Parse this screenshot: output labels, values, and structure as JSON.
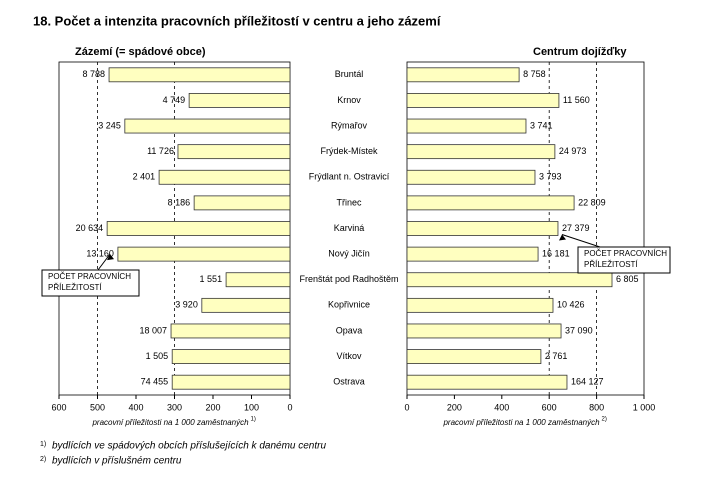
{
  "title": "18. Počet a intenzita pracovních příležitostí v centru a jeho zázemí",
  "chart_data": [
    {
      "type": "bar",
      "orientation": "horizontal",
      "reversed": true,
      "subtitle": "Zázemí (= spádové obce)",
      "categories": [
        "Bruntál",
        "Krnov",
        "Rýmařov",
        "Frýdek-Místek",
        "Frýdlant n. Ostravicí",
        "Třinec",
        "Karviná",
        "Nový Jičín",
        "Frenštát pod Radhoštěm",
        "Kopřivnice",
        "Opava",
        "Vítkov",
        "Ostrava"
      ],
      "values": [
        470,
        262,
        429,
        291,
        340,
        249,
        475,
        447,
        166,
        229,
        309,
        306,
        306
      ],
      "job_counts": [
        "8 788",
        "4 749",
        "3 245",
        "11 726",
        "2 401",
        "8 186",
        "20 634",
        "13 160",
        "1 551",
        "3 920",
        "18 007",
        "1 505",
        "74 455"
      ],
      "color": "#ffffc0",
      "xlim": [
        0,
        600
      ],
      "xticks": [
        600,
        500,
        400,
        300,
        200,
        100,
        0
      ],
      "grid_lines": [
        500,
        300
      ],
      "xlabel": "pracovní příležitosti na 1 000 zaměstnaných",
      "xlabel_note": "1)",
      "annotation": [
        "POČET PRACOVNÍCH",
        "PŘÍLEŽITOSTÍ"
      ]
    },
    {
      "type": "bar",
      "orientation": "horizontal",
      "reversed": false,
      "subtitle": "Centrum dojížďky",
      "values": [
        473,
        641,
        502,
        624,
        540,
        705,
        637,
        553,
        865,
        616,
        650,
        565,
        675
      ],
      "job_counts": [
        "8 758",
        "11 560",
        "3 741",
        "24 973",
        "3 793",
        "22 809",
        "27 379",
        "16 181",
        "6 805",
        "10 426",
        "37 090",
        "2 761",
        "164 127"
      ],
      "color": "#ffffc0",
      "xlim": [
        0,
        1000
      ],
      "xticks": [
        0,
        200,
        400,
        600,
        800,
        {
          "value": 1000,
          "label": "1 000"
        }
      ],
      "grid_lines": [
        600,
        800
      ],
      "xlabel": "pracovní příležitosti na 1 000 zaměstnaných",
      "xlabel_note": "2)",
      "annotation": [
        "POČET PRACOVNÍCH",
        "PŘÍLEŽITOSTÍ"
      ]
    }
  ],
  "footnotes": [
    {
      "marker": "1)",
      "text": "bydlících ve spádových obcích příslušejících k danému centru"
    },
    {
      "marker": "2)",
      "text": "bydlících v příslušném centru"
    }
  ]
}
